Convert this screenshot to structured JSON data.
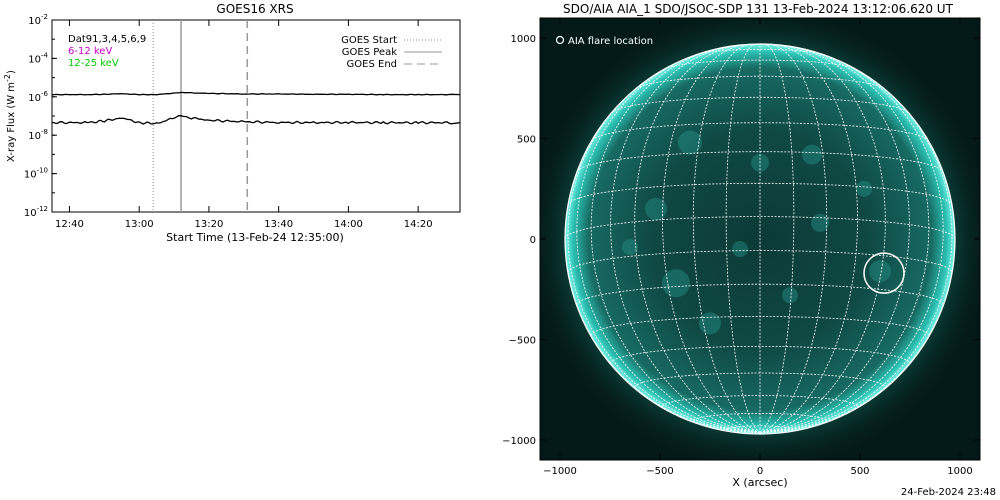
{
  "left_panel": {
    "title": "GOES16 XRS",
    "ylabel": "X-ray Flux (W m",
    "ylabel_unit_exp": "-2",
    "ylabel_close": ")",
    "xlabel": "Start Time (13-Feb-24 12:35:00)",
    "legend_left": [
      {
        "label": "Dat91,3,4,5,6,9",
        "color": "#000000"
      },
      {
        "label": "6-12 keV",
        "color": "#cc00cc"
      },
      {
        "label": "12-25 keV",
        "color": "#00cc00"
      }
    ],
    "legend_right": [
      {
        "label": "GOES Start",
        "style": "dotted"
      },
      {
        "label": "GOES Peak",
        "style": "solid"
      },
      {
        "label": "GOES End",
        "style": "dashed"
      }
    ],
    "y_ticks": [
      {
        "base": "10",
        "exp": "-2"
      },
      {
        "base": "10",
        "exp": "-4"
      },
      {
        "base": "10",
        "exp": "-6"
      },
      {
        "base": "10",
        "exp": "-8"
      },
      {
        "base": "10",
        "exp": "-10"
      },
      {
        "base": "10",
        "exp": "-12"
      }
    ],
    "x_ticks": [
      "12:40",
      "13:00",
      "13:20",
      "13:40",
      "14:00",
      "14:20"
    ]
  },
  "right_panel": {
    "title": "SDO/AIA AIA_1 SDO/JSOC-SDP 131 13-Feb-2024 13:12:06.620 UT",
    "legend": "AIA flare location",
    "xlabel": "X (arcsec)",
    "x_ticks": [
      "-1000",
      "-500",
      "0",
      "500",
      "1000"
    ],
    "y_ticks": [
      "1000",
      "500",
      "0",
      "-500",
      "-1000"
    ],
    "sun_color": "#1fa59a",
    "grid_color": "#ffffff",
    "flare_location": {
      "x": 620,
      "y": -170
    }
  },
  "footer": "24-Feb-2024 23:48",
  "chart_data": [
    {
      "type": "line",
      "title": "GOES16 XRS",
      "xlabel": "Start Time (13-Feb-24 12:35:00)",
      "ylabel": "X-ray Flux (W m-2)",
      "y_scale": "log",
      "ylim": [
        1e-12,
        0.01
      ],
      "xlim": [
        "12:35",
        "14:32"
      ],
      "series": [
        {
          "name": "6-12 keV",
          "x": [
            "12:35",
            "12:45",
            "12:50",
            "12:55",
            "13:00",
            "13:05",
            "13:10",
            "13:12",
            "13:15",
            "13:20",
            "13:30",
            "13:40",
            "13:50",
            "14:00",
            "14:10",
            "14:20",
            "14:30"
          ],
          "values": [
            1.3e-06,
            1.3e-06,
            1.35e-06,
            1.45e-06,
            1.3e-06,
            1.3e-06,
            1.55e-06,
            1.7e-06,
            1.6e-06,
            1.5e-06,
            1.4e-06,
            1.4e-06,
            1.35e-06,
            1.35e-06,
            1.3e-06,
            1.3e-06,
            1.3e-06
          ]
        },
        {
          "name": "12-25 keV",
          "x": [
            "12:35",
            "12:45",
            "12:50",
            "12:55",
            "13:00",
            "13:05",
            "13:10",
            "13:12",
            "13:15",
            "13:20",
            "13:30",
            "13:40",
            "13:50",
            "14:00",
            "14:10",
            "14:20",
            "14:30"
          ],
          "values": [
            4.5e-08,
            4.5e-08,
            5.5e-08,
            8e-08,
            4.5e-08,
            4e-08,
            8e-08,
            1e-07,
            8e-08,
            6e-08,
            5e-08,
            4.6e-08,
            4.5e-08,
            4.6e-08,
            4.5e-08,
            4.5e-08,
            4.5e-08
          ]
        }
      ],
      "markers": {
        "goes_start": "13:04",
        "goes_peak": "13:12",
        "goes_end": "13:31"
      },
      "legend": "top-right"
    },
    {
      "type": "heatmap",
      "title": "SDO/AIA AIA_1 SDO/JSOC-SDP 131 13-Feb-2024 13:12:06.620 UT",
      "xlabel": "X (arcsec)",
      "xlim": [
        -1100,
        1100
      ],
      "ylim": [
        -1100,
        1100
      ],
      "flare_location": {
        "x": 620,
        "y": -170
      }
    }
  ]
}
